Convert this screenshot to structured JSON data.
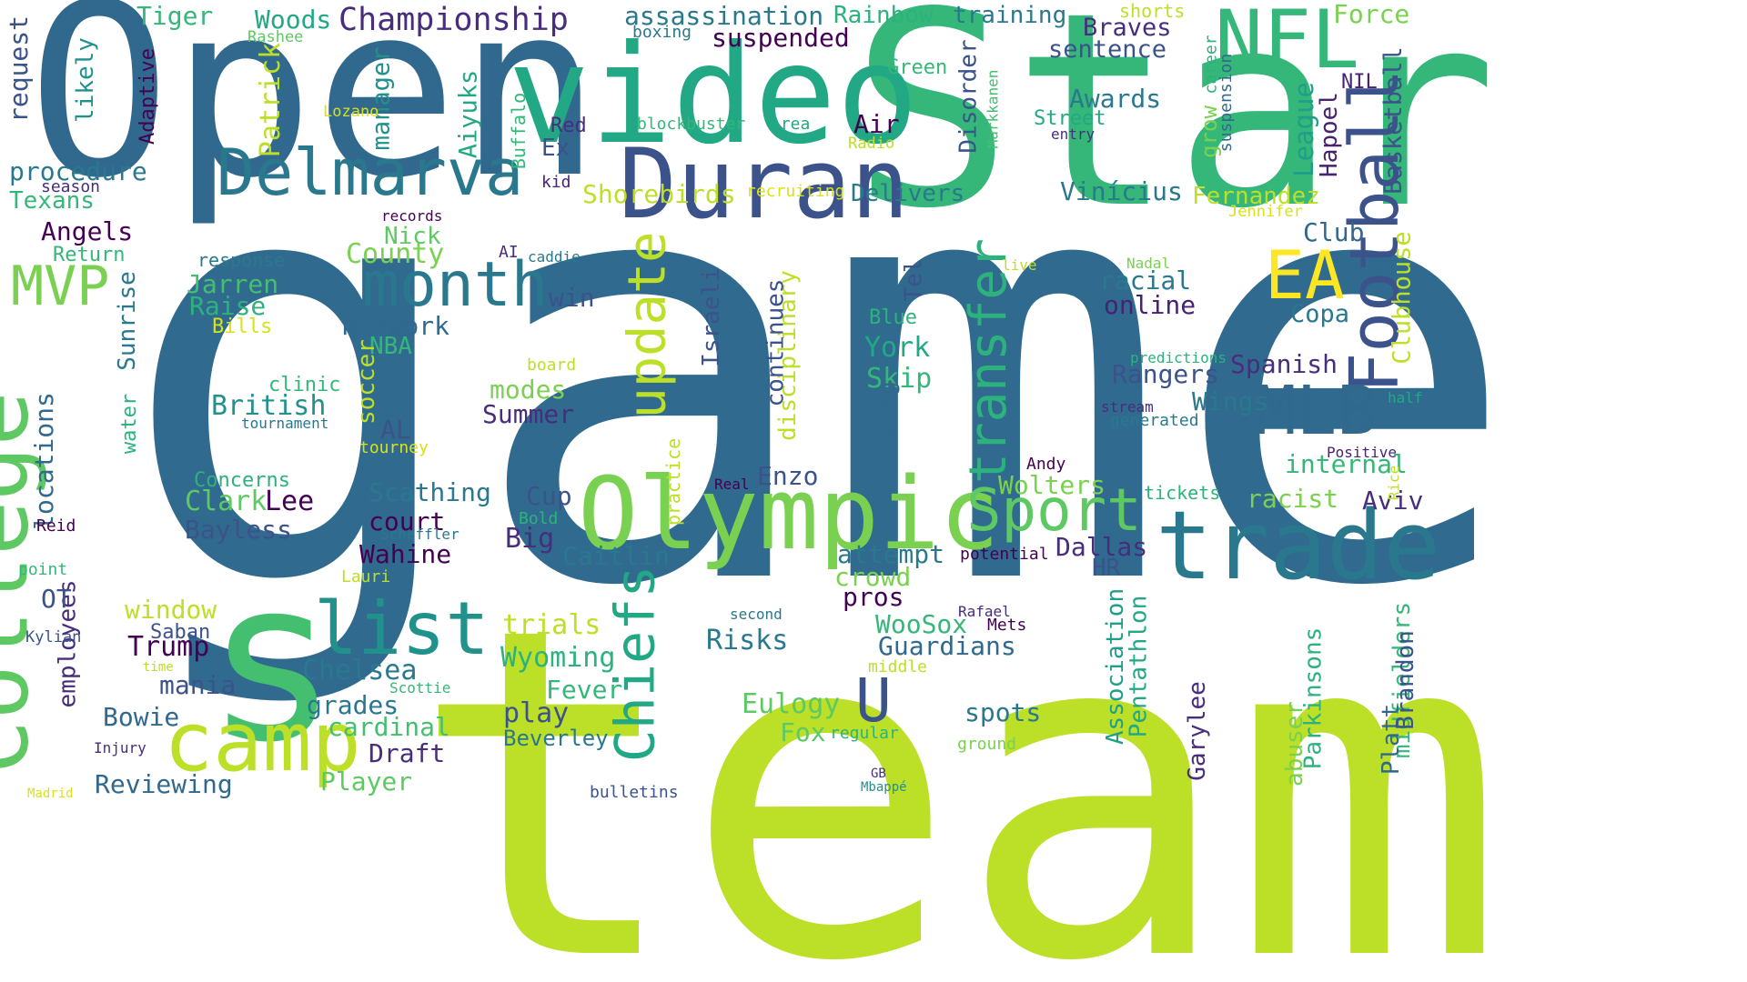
{
  "colors": {
    "background": "#ffffff",
    "palette": [
      "#440154",
      "#472d7b",
      "#3b528b",
      "#2c728e",
      "#21918c",
      "#28ae80",
      "#5ec962",
      "#addc30",
      "#fde725"
    ]
  },
  "words": [
    {
      "text": "game",
      "color": "#306b8f"
    },
    {
      "text": "team",
      "color": "#bcdf27"
    },
    {
      "text": "Star",
      "color": "#35b779"
    },
    {
      "text": "Open",
      "color": "#31688e"
    },
    {
      "text": "video",
      "color": "#22a884"
    },
    {
      "text": "Duran",
      "color": "#3b528b"
    },
    {
      "text": "NFL",
      "color": "#35b779"
    },
    {
      "text": "College",
      "color": "#5ec962"
    },
    {
      "text": "s",
      "color": "#44bf70"
    },
    {
      "text": "Olympic",
      "color": "#7ad151"
    },
    {
      "text": "trade",
      "color": "#2a788e"
    },
    {
      "text": "Football",
      "color": "#3b528b"
    },
    {
      "text": "camp",
      "color": "#bcdf27"
    },
    {
      "text": "list",
      "color": "#21918c"
    },
    {
      "text": "Delmarva",
      "color": "#2a788e"
    },
    {
      "text": "month",
      "color": "#2a788e"
    },
    {
      "text": "EA",
      "color": "#fde725"
    },
    {
      "text": "MLB",
      "color": "#31688e"
    },
    {
      "text": "update",
      "color": "#bcdf27"
    },
    {
      "text": "transfer",
      "color": "#2db27d"
    },
    {
      "text": "Chiefs",
      "color": "#22a884"
    },
    {
      "text": "Sport",
      "color": "#5ec962"
    },
    {
      "text": "U",
      "color": "#3b528b"
    },
    {
      "text": "MVP",
      "color": "#7ad151"
    },
    {
      "text": "Championship",
      "color": "#472d7b"
    },
    {
      "text": "assassination",
      "color": "#2a788e"
    },
    {
      "text": "Rainbow",
      "color": "#2db27d"
    },
    {
      "text": "training",
      "color": "#2a788e"
    },
    {
      "text": "Tiger",
      "color": "#35b779"
    },
    {
      "text": "Woods",
      "color": "#22a884"
    },
    {
      "text": "suspended",
      "color": "#440154"
    },
    {
      "text": "Braves",
      "color": "#472d7b"
    },
    {
      "text": "sentence",
      "color": "#3b528b"
    },
    {
      "text": "shorts",
      "color": "#bcdf27"
    },
    {
      "text": "Force",
      "color": "#7ad151"
    },
    {
      "text": "boxing",
      "color": "#2a788e"
    },
    {
      "text": "Rashee",
      "color": "#5ec962"
    },
    {
      "text": "request",
      "color": "#3b528b"
    },
    {
      "text": "likely",
      "color": "#21918c"
    },
    {
      "text": "Adaptive",
      "color": "#440154"
    },
    {
      "text": "Patrick",
      "color": "#bcdf27"
    },
    {
      "text": "manager",
      "color": "#21918c"
    },
    {
      "text": "Aiyuks",
      "color": "#22a884"
    },
    {
      "text": "Buffalo",
      "color": "#35b779"
    },
    {
      "text": "Disorder",
      "color": "#3b528b"
    },
    {
      "text": "Markkanen",
      "color": "#44bf70"
    },
    {
      "text": "Green",
      "color": "#35b779"
    },
    {
      "text": "Awards",
      "color": "#2a788e"
    },
    {
      "text": "Street",
      "color": "#22a884"
    },
    {
      "text": "entry",
      "color": "#472d7b"
    },
    {
      "text": "grow",
      "color": "#7ad151"
    },
    {
      "text": "career",
      "color": "#2db27d"
    },
    {
      "text": "suspension",
      "color": "#31688e"
    },
    {
      "text": "League",
      "color": "#1f9e89"
    },
    {
      "text": "Hapoel",
      "color": "#482173"
    },
    {
      "text": "NIL",
      "color": "#482173"
    },
    {
      "text": "Basketball",
      "color": "#3b528b"
    },
    {
      "text": "Lozano",
      "color": "#d8e219"
    },
    {
      "text": "Red",
      "color": "#472d7b"
    },
    {
      "text": "blockbuster",
      "color": "#35b779"
    },
    {
      "text": "Area",
      "color": "#22a884"
    },
    {
      "text": "Air",
      "color": "#440154"
    },
    {
      "text": "Radio",
      "color": "#bcdf27"
    },
    {
      "text": "Ex",
      "color": "#3b528b"
    },
    {
      "text": "kid",
      "color": "#482173"
    },
    {
      "text": "procedure",
      "color": "#2a788e"
    },
    {
      "text": "season",
      "color": "#472d7b"
    },
    {
      "text": "Texans",
      "color": "#35b779"
    },
    {
      "text": "Shorebirds",
      "color": "#bcdf27"
    },
    {
      "text": "recruiting",
      "color": "#d8e219"
    },
    {
      "text": "Delivers",
      "color": "#2a788e"
    },
    {
      "text": "Vinícius",
      "color": "#2a788e"
    },
    {
      "text": "Fernandez",
      "color": "#bcdf27"
    },
    {
      "text": "Jennifer",
      "color": "#d8e219"
    },
    {
      "text": "records",
      "color": "#440154"
    },
    {
      "text": "Angels",
      "color": "#440154"
    },
    {
      "text": "Return",
      "color": "#35b779"
    },
    {
      "text": "Nick",
      "color": "#5ec962"
    },
    {
      "text": "County",
      "color": "#7ad151"
    },
    {
      "text": "Club",
      "color": "#31688e"
    },
    {
      "text": "Clubhouse",
      "color": "#bcdf27"
    },
    {
      "text": "AI",
      "color": "#472d7b"
    },
    {
      "text": "caddie",
      "color": "#2a788e"
    },
    {
      "text": "Nadal",
      "color": "#7ad151"
    },
    {
      "text": "live",
      "color": "#bcdf27"
    },
    {
      "text": "response",
      "color": "#2a788e"
    },
    {
      "text": "Jarren",
      "color": "#44bf70"
    },
    {
      "text": "Raise",
      "color": "#2db27d"
    },
    {
      "text": "Sunrise",
      "color": "#2a788e"
    },
    {
      "text": "Bills",
      "color": "#d8e219"
    },
    {
      "text": "Israeli",
      "color": "#3b528b"
    },
    {
      "text": "disciplinary",
      "color": "#bcdf27"
    },
    {
      "text": "Tel",
      "color": "#3b528b"
    },
    {
      "text": "racial",
      "color": "#2a788e"
    },
    {
      "text": "online",
      "color": "#482173"
    },
    {
      "text": "Copa",
      "color": "#2a788e"
    },
    {
      "text": "win",
      "color": "#3b528b"
    },
    {
      "text": "Network",
      "color": "#31688e"
    },
    {
      "text": "NBA",
      "color": "#35b779"
    },
    {
      "text": "Blue",
      "color": "#2db27d"
    },
    {
      "text": "York",
      "color": "#22a884"
    },
    {
      "text": "Skip",
      "color": "#35b779"
    },
    {
      "text": "continues",
      "color": "#3b528b"
    },
    {
      "text": "predictions",
      "color": "#2db27d"
    },
    {
      "text": "Rangers",
      "color": "#3b528b"
    },
    {
      "text": "Spanish",
      "color": "#472d7b"
    },
    {
      "text": "Wings",
      "color": "#2a788e"
    },
    {
      "text": "stream",
      "color": "#472d7b"
    },
    {
      "text": "generated",
      "color": "#2a788e"
    },
    {
      "text": "half",
      "color": "#22a884"
    },
    {
      "text": "board",
      "color": "#bcdf27"
    },
    {
      "text": "modes",
      "color": "#7ad151"
    },
    {
      "text": "Summer",
      "color": "#472d7b"
    },
    {
      "text": "soccer",
      "color": "#bcdf27"
    },
    {
      "text": "landing",
      "color": "#31688e"
    },
    {
      "text": "clinic",
      "color": "#35b779"
    },
    {
      "text": "British",
      "color": "#21918c"
    },
    {
      "text": "tournament",
      "color": "#2a788e"
    },
    {
      "text": "water",
      "color": "#2db27d"
    },
    {
      "text": "locations",
      "color": "#31688e"
    },
    {
      "text": "AL",
      "color": "#3b528b"
    },
    {
      "text": "tourney",
      "color": "#d8e219"
    },
    {
      "text": "practice",
      "color": "#bcdf27"
    },
    {
      "text": "Andy",
      "color": "#440154"
    },
    {
      "text": "Positive",
      "color": "#482173"
    },
    {
      "text": "internal",
      "color": "#35b779"
    },
    {
      "text": "Enzo",
      "color": "#3b528b"
    },
    {
      "text": "Real",
      "color": "#440154"
    },
    {
      "text": "Concerns",
      "color": "#2db27d"
    },
    {
      "text": "Clark",
      "color": "#5ec962"
    },
    {
      "text": "Lee",
      "color": "#440154"
    },
    {
      "text": "Bayless",
      "color": "#3b528b"
    },
    {
      "text": "Scathing",
      "color": "#2a788e"
    },
    {
      "text": "court",
      "color": "#440154"
    },
    {
      "text": "Cup",
      "color": "#3b528b"
    },
    {
      "text": "Wolters",
      "color": "#7ad151"
    },
    {
      "text": "tickets",
      "color": "#2db27d"
    },
    {
      "text": "racist",
      "color": "#7ad151"
    },
    {
      "text": "Aviv",
      "color": "#472d7b"
    },
    {
      "text": "Rice",
      "color": "#bcdf27"
    },
    {
      "text": "Reid",
      "color": "#440154"
    },
    {
      "text": "point",
      "color": "#35b779"
    },
    {
      "text": "Scheffler",
      "color": "#2a788e"
    },
    {
      "text": "Bold",
      "color": "#2db27d"
    },
    {
      "text": "Big",
      "color": "#472d7b"
    },
    {
      "text": "Caitlin",
      "color": "#2a788e"
    },
    {
      "text": "attempt",
      "color": "#2a788e"
    },
    {
      "text": "potential",
      "color": "#440154"
    },
    {
      "text": "Dallas",
      "color": "#472d7b"
    },
    {
      "text": "Wahine",
      "color": "#440154"
    },
    {
      "text": "HR",
      "color": "#3b528b"
    },
    {
      "text": "crowd",
      "color": "#7ad151"
    },
    {
      "text": "Lauri",
      "color": "#bcdf27"
    },
    {
      "text": "employees",
      "color": "#472d7b"
    },
    {
      "text": "OT",
      "color": "#3b528b"
    },
    {
      "text": "window",
      "color": "#bcdf27"
    },
    {
      "text": "pros",
      "color": "#440154"
    },
    {
      "text": "Association",
      "color": "#1f9e89"
    },
    {
      "text": "Pentathlon",
      "color": "#22a884"
    },
    {
      "text": "Garylee",
      "color": "#472d7b"
    },
    {
      "text": "Parkinsons",
      "color": "#2db27d"
    },
    {
      "text": "abuser",
      "color": "#7ad151"
    },
    {
      "text": "midfielders",
      "color": "#35b779"
    },
    {
      "text": "Platt",
      "color": "#31688e"
    },
    {
      "text": "Brandon",
      "color": "#3b528b"
    },
    {
      "text": "Kylian",
      "color": "#3b528b"
    },
    {
      "text": "Saban",
      "color": "#3b528b"
    },
    {
      "text": "Trump",
      "color": "#440154"
    },
    {
      "text": "trials",
      "color": "#bcdf27"
    },
    {
      "text": "WooSox",
      "color": "#35b779"
    },
    {
      "text": "Rafael",
      "color": "#472d7b"
    },
    {
      "text": "Mets",
      "color": "#440154"
    },
    {
      "text": "Guardians",
      "color": "#31688e"
    },
    {
      "text": "Risks",
      "color": "#2a788e"
    },
    {
      "text": "second",
      "color": "#2a788e"
    },
    {
      "text": "time",
      "color": "#bcdf27"
    },
    {
      "text": "mania",
      "color": "#3b528b"
    },
    {
      "text": "Chelsea",
      "color": "#2a788e"
    },
    {
      "text": "Wyoming",
      "color": "#2db27d"
    },
    {
      "text": "middle",
      "color": "#bcdf27"
    },
    {
      "text": "Fever",
      "color": "#35b779"
    },
    {
      "text": "Scottie",
      "color": "#35b779"
    },
    {
      "text": "grades",
      "color": "#2a788e"
    },
    {
      "text": "Eulogy",
      "color": "#5ec962"
    },
    {
      "text": "spots",
      "color": "#2a788e"
    },
    {
      "text": "Bowie",
      "color": "#31688e"
    },
    {
      "text": "cardinal",
      "color": "#44bf70"
    },
    {
      "text": "play",
      "color": "#3b528b"
    },
    {
      "text": "Beverley",
      "color": "#2a788e"
    },
    {
      "text": "Fox",
      "color": "#5ec962"
    },
    {
      "text": "regular",
      "color": "#2db27d"
    },
    {
      "text": "ground",
      "color": "#7ad151"
    },
    {
      "text": "Injury",
      "color": "#472d7b"
    },
    {
      "text": "Draft",
      "color": "#472d7b"
    },
    {
      "text": "Madrid",
      "color": "#d8e219"
    },
    {
      "text": "Reviewing",
      "color": "#31688e"
    },
    {
      "text": "Player",
      "color": "#5ec962"
    },
    {
      "text": "bulletins",
      "color": "#3b528b"
    },
    {
      "text": "GB",
      "color": "#472d7b"
    },
    {
      "text": "Mbappé",
      "color": "#21918c"
    }
  ]
}
